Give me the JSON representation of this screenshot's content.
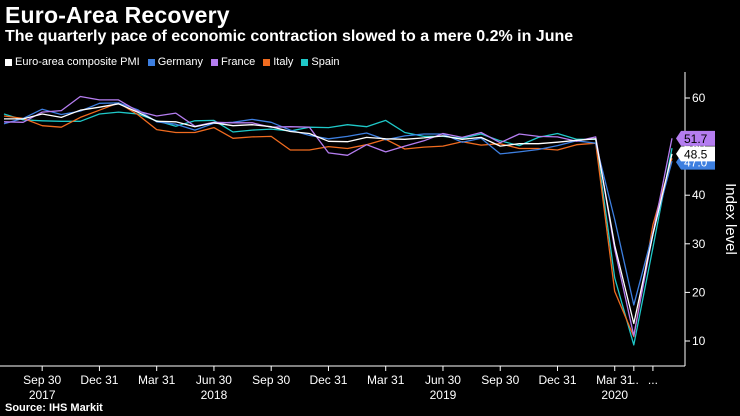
{
  "header": {
    "title": "Euro-Area Recovery",
    "subtitle": "The quarterly pace of economic contraction slowed to a mere 0.2% in June"
  },
  "source": "Source: IHS Markit",
  "colors": {
    "background": "#000000",
    "euro": "#ffffff",
    "germany": "#3d7fe0",
    "france": "#b57df0",
    "italy": "#f06b1f",
    "spain": "#1fc8c8"
  },
  "chart_data": {
    "type": "line",
    "title": "Euro-Area Recovery",
    "subtitle": "The quarterly pace of economic contraction slowed to a mere 0.2% in June",
    "ylabel": "Index level",
    "ylim": [
      5,
      65
    ],
    "yticks": [
      "10",
      "20",
      "30",
      "40",
      "50",
      "60"
    ],
    "ytick_values": [
      10,
      20,
      30,
      40,
      50,
      60
    ],
    "grid": false,
    "legend_position": "top-left",
    "x": [
      "2017-07",
      "2017-08",
      "2017-09",
      "2017-10",
      "2017-11",
      "2017-12",
      "2018-01",
      "2018-02",
      "2018-03",
      "2018-04",
      "2018-05",
      "2018-06",
      "2018-07",
      "2018-08",
      "2018-09",
      "2018-10",
      "2018-11",
      "2018-12",
      "2019-01",
      "2019-02",
      "2019-03",
      "2019-04",
      "2019-05",
      "2019-06",
      "2019-07",
      "2019-08",
      "2019-09",
      "2019-10",
      "2019-11",
      "2019-12",
      "2020-01",
      "2020-02",
      "2020-03",
      "2020-04",
      "2020-05",
      "2020-06"
    ],
    "x_ticks": [
      {
        "label": "Sep 30",
        "year": "2017",
        "index": 2
      },
      {
        "label": "Dec 31",
        "year": "",
        "index": 5
      },
      {
        "label": "Mar 31",
        "year": "",
        "index": 8
      },
      {
        "label": "Jun 30",
        "year": "2018",
        "index": 11
      },
      {
        "label": "Sep 30",
        "year": "",
        "index": 14
      },
      {
        "label": "Dec 31",
        "year": "",
        "index": 17
      },
      {
        "label": "Mar 31",
        "year": "",
        "index": 20
      },
      {
        "label": "Jun 30",
        "year": "2019",
        "index": 23
      },
      {
        "label": "Sep 30",
        "year": "",
        "index": 26
      },
      {
        "label": "Dec 31",
        "year": "",
        "index": 29
      },
      {
        "label": "Mar 31",
        "year": "2020",
        "index": 32
      },
      {
        "label": "...",
        "year": "",
        "index": 33
      },
      {
        "label": "...",
        "year": "",
        "index": 34
      }
    ],
    "series": [
      {
        "name": "Euro-area composite PMI",
        "key": "euro",
        "color": "#ffffff",
        "last_label": "48.5",
        "values": [
          55.7,
          55.7,
          56.7,
          56.0,
          57.5,
          58.1,
          58.8,
          57.1,
          55.2,
          55.1,
          54.1,
          54.9,
          54.3,
          54.5,
          54.1,
          53.1,
          52.7,
          51.1,
          51.0,
          51.9,
          51.6,
          51.5,
          51.8,
          52.2,
          51.5,
          51.9,
          50.1,
          50.6,
          50.6,
          50.9,
          51.3,
          51.6,
          29.7,
          13.6,
          31.9,
          48.5
        ]
      },
      {
        "name": "Germany",
        "key": "germany",
        "color": "#3d7fe0",
        "last_label": "47.0",
        "values": [
          54.7,
          55.8,
          57.7,
          56.6,
          57.3,
          58.9,
          59.0,
          57.6,
          55.1,
          54.6,
          53.4,
          54.8,
          55.0,
          55.6,
          55.0,
          53.4,
          52.3,
          51.6,
          52.1,
          52.8,
          51.4,
          52.2,
          52.6,
          52.6,
          50.9,
          51.7,
          48.5,
          48.9,
          49.4,
          50.2,
          51.2,
          50.7,
          35.0,
          17.4,
          32.3,
          47.0
        ]
      },
      {
        "name": "France",
        "key": "france",
        "color": "#b57df0",
        "last_label": "51.7",
        "values": [
          55.1,
          55.0,
          57.1,
          57.4,
          60.3,
          59.6,
          59.6,
          57.3,
          56.3,
          56.9,
          54.2,
          55.0,
          54.9,
          54.9,
          54.0,
          54.1,
          54.0,
          48.7,
          48.2,
          50.4,
          48.9,
          50.1,
          51.2,
          52.7,
          51.9,
          52.9,
          50.8,
          52.6,
          52.1,
          52.0,
          51.1,
          52.0,
          28.9,
          11.1,
          32.1,
          51.7
        ]
      },
      {
        "name": "Italy",
        "key": "italy",
        "color": "#f06b1f",
        "last_label": "",
        "values": [
          56.3,
          55.8,
          54.3,
          54.0,
          56.0,
          57.5,
          59.0,
          56.6,
          53.5,
          52.9,
          52.9,
          53.9,
          51.7,
          52.0,
          52.1,
          49.3,
          49.3,
          50.0,
          49.6,
          50.4,
          51.5,
          49.5,
          49.9,
          50.1,
          51.0,
          50.3,
          50.6,
          49.6,
          49.6,
          49.3,
          50.4,
          50.7,
          20.2,
          10.9,
          33.9,
          47.6
        ]
      },
      {
        "name": "Spain",
        "key": "spain",
        "color": "#1fc8c8",
        "last_label": "",
        "values": [
          56.7,
          55.5,
          55.3,
          55.2,
          55.2,
          56.7,
          57.1,
          56.7,
          55.3,
          54.2,
          55.3,
          55.4,
          53.0,
          53.4,
          53.6,
          53.2,
          54.0,
          53.9,
          54.5,
          54.1,
          55.4,
          52.9,
          52.1,
          52.1,
          51.7,
          52.6,
          51.2,
          50.2,
          51.9,
          52.7,
          51.5,
          51.5,
          23.0,
          9.2,
          29.2,
          49.7
        ]
      }
    ]
  }
}
